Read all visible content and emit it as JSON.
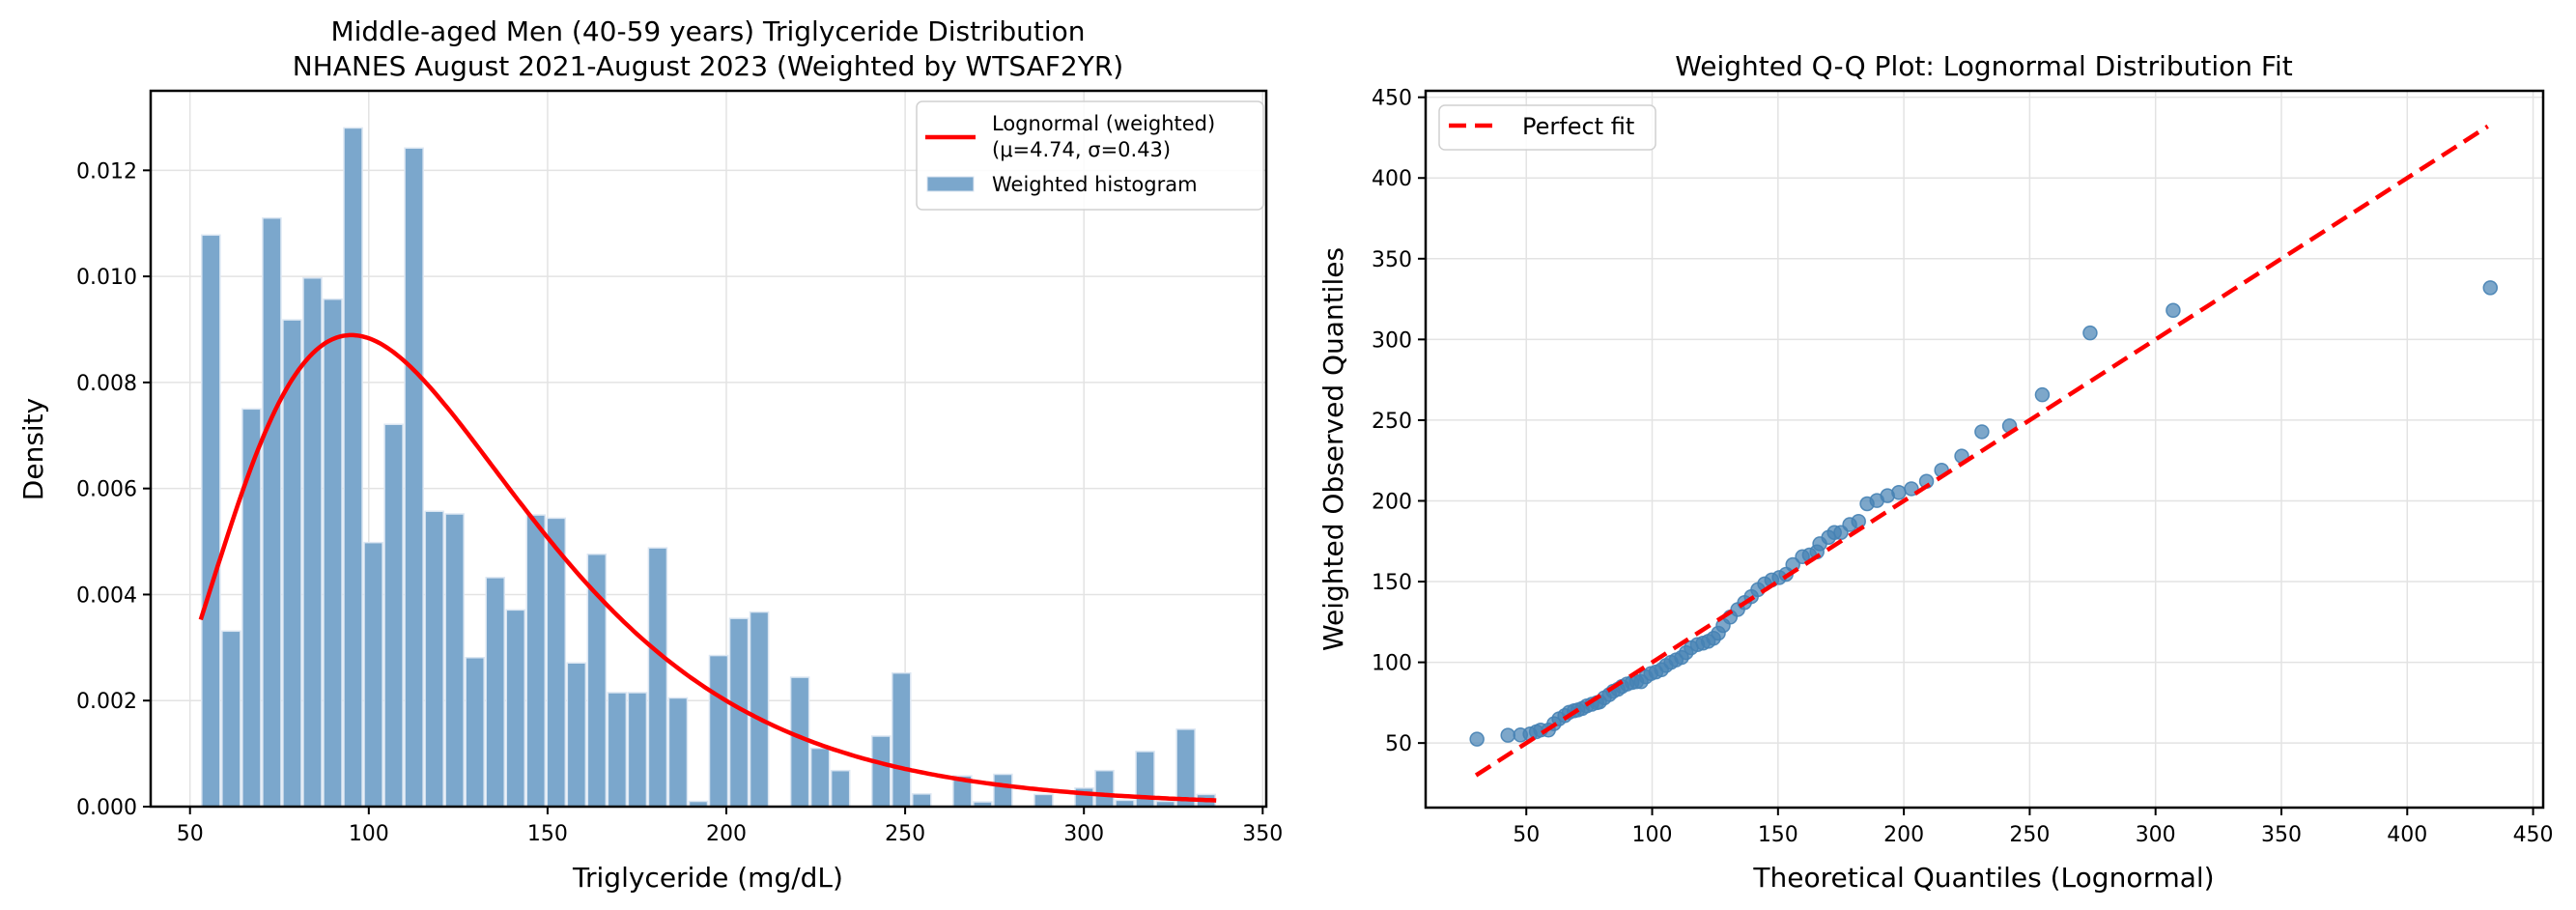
{
  "chart_data": [
    {
      "type": "bar",
      "subtype": "histogram",
      "title": "Middle-aged Men (40-59 years) Triglyceride Distribution",
      "subtitle": "NHANES August 2021-August 2023 (Weighted by WTSAF2YR)",
      "xlabel": "Triglyceride (mg/dL)",
      "ylabel": "Density",
      "xlim": [
        39,
        351
      ],
      "ylim": [
        0,
        0.0135
      ],
      "xticks": [
        50,
        100,
        150,
        200,
        250,
        300,
        350
      ],
      "yticks": [
        "0.000",
        "0.002",
        "0.004",
        "0.006",
        "0.008",
        "0.010",
        "0.012"
      ],
      "grid": true,
      "legend_position": "top-right",
      "bin_start": 53,
      "bin_end": 337,
      "bar_color": "#7ba7cc",
      "curve_color": "#ff0000",
      "legend": [
        {
          "label": "Lognormal (weighted)\n(μ=4.74, σ=0.43)",
          "label_line1": "Lognormal (weighted)",
          "label_line2": "(μ=4.74, σ=0.43)",
          "type": "line",
          "color": "#ff0000"
        },
        {
          "label": "Weighted histogram",
          "type": "patch",
          "color": "#7ba7cc"
        }
      ],
      "series": [
        {
          "name": "Weighted histogram",
          "values": [
            0.01078,
            0.00331,
            0.0075,
            0.0111,
            0.00918,
            0.00997,
            0.00957,
            0.0128,
            0.00498,
            0.00721,
            0.01242,
            0.00557,
            0.00552,
            0.00281,
            0.00432,
            0.00371,
            0.0055,
            0.00544,
            0.00271,
            0.00476,
            0.00215,
            0.00215,
            0.00488,
            0.00205,
            0.0001,
            0.00285,
            0.00355,
            0.00367,
            0.0,
            0.00244,
            0.0011,
            0.00068,
            0.0,
            0.00133,
            0.00252,
            0.00024,
            0.0,
            0.00058,
            9e-05,
            0.00061,
            0.0,
            0.00023,
            0.0,
            0.00035,
            0.00068,
            0.00012,
            0.00104,
            0.0001,
            0.00146,
            0.00023
          ]
        },
        {
          "name": "Lognormal (weighted)",
          "type": "line",
          "mu": 4.74,
          "sigma": 0.43,
          "x_range": [
            53,
            337
          ]
        }
      ]
    },
    {
      "type": "scatter",
      "title": "Weighted Q-Q Plot: Lognormal Distribution Fit",
      "xlabel": "Theoretical Quantiles (Lognormal)",
      "ylabel": "Weighted Observed Quantiles",
      "xlim": [
        10,
        454
      ],
      "ylim": [
        10,
        454
      ],
      "xticks": [
        50,
        100,
        150,
        200,
        250,
        300,
        350,
        400,
        450
      ],
      "yticks": [
        50,
        100,
        150,
        200,
        250,
        300,
        350,
        400,
        450
      ],
      "grid": true,
      "legend_position": "top-left",
      "point_color": "#4682b4",
      "line_color": "#ff0000",
      "legend": [
        {
          "label": "Perfect fit",
          "type": "dashed-line",
          "color": "#ff0000"
        }
      ],
      "reference_line": {
        "name": "Perfect fit",
        "x": [
          30,
          432
        ],
        "y": [
          30,
          432
        ]
      },
      "points": {
        "x": [
          30.4,
          42.7,
          47.7,
          51.5,
          54,
          55.7,
          58.8,
          61,
          63,
          65.3,
          67,
          69,
          70.5,
          72.2,
          74,
          76,
          78,
          79.1,
          81,
          83,
          84.5,
          86.4,
          88,
          90,
          92,
          93.8,
          95.6,
          97.5,
          99.5,
          101.5,
          103.7,
          105.5,
          107.5,
          109.5,
          111.7,
          113.5,
          115.5,
          118,
          120.2,
          122.3,
          124.4,
          126.3,
          128.2,
          131,
          134,
          136.7,
          139.4,
          142,
          144.7,
          147.5,
          150.5,
          153.2,
          155.9,
          159.7,
          162.5,
          165.5,
          166.6,
          170.1,
          172.4,
          175,
          178.5,
          182,
          185.4,
          189.3,
          193.5,
          198,
          203,
          209,
          215,
          223,
          231,
          242,
          255,
          274,
          307,
          433
        ],
        "y": [
          52.4,
          54.8,
          55,
          55.6,
          57,
          58,
          58,
          62,
          65,
          67,
          69,
          70,
          70.5,
          71.4,
          73,
          74,
          75,
          75.4,
          78,
          80,
          82,
          83.3,
          85,
          86.5,
          87.5,
          88,
          88,
          91,
          93,
          94,
          95.4,
          98,
          100,
          101.5,
          103,
          106,
          109,
          111,
          111.9,
          113,
          114.9,
          118,
          122.8,
          128,
          132.7,
          137,
          140.7,
          145,
          148.6,
          151,
          152.5,
          154.5,
          160.5,
          165.4,
          166.5,
          168.4,
          173.4,
          177.4,
          180.4,
          180.4,
          185.3,
          187.3,
          198.2,
          200.2,
          203.2,
          205.2,
          207.5,
          212.1,
          219,
          227.7,
          242.8,
          246.4,
          265.7,
          304,
          318,
          332
        ]
      }
    }
  ]
}
